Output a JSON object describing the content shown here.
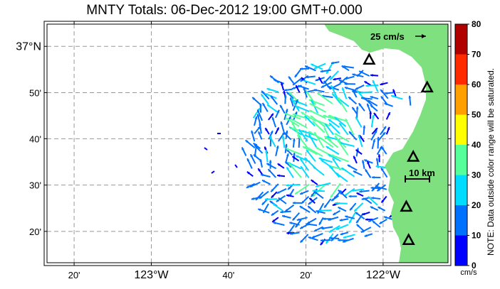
{
  "title": "MNTY Totals: 06-Dec-2012 19:00 GMT+0.000",
  "lon_ticks": [
    {
      "lon": -123.333,
      "label": "20'",
      "major": false
    },
    {
      "lon": -123.0,
      "label": "123°W",
      "major": true
    },
    {
      "lon": -122.667,
      "label": "40'",
      "major": false
    },
    {
      "lon": -122.333,
      "label": "20'",
      "major": false
    },
    {
      "lon": -122.0,
      "label": "122°W",
      "major": true
    }
  ],
  "lat_ticks": [
    {
      "lat": 37.0,
      "label": "37°N",
      "major": true
    },
    {
      "lat": 36.833,
      "label": "50'",
      "major": false
    },
    {
      "lat": 36.667,
      "label": "40'",
      "major": false
    },
    {
      "lat": 36.5,
      "label": "30'",
      "major": false
    },
    {
      "lat": 36.333,
      "label": "20'",
      "major": false
    }
  ],
  "extent": {
    "lon_min": -123.45,
    "lon_max": -121.72,
    "lat_min": 36.22,
    "lat_max": 37.08
  },
  "colorbar": {
    "ticks": [
      "0",
      "10",
      "20",
      "30",
      "40",
      "50",
      "60",
      "70",
      "80"
    ],
    "colors": [
      "#0000ff",
      "#0070ff",
      "#00dcff",
      "#55ff99",
      "#ffff00",
      "#ffa000",
      "#ff2a00",
      "#b00000"
    ],
    "unit": "cm/s",
    "note": "NOTE: Data outside color range will be saturated."
  },
  "scale_vector": {
    "label": "25 cm/s"
  },
  "scale_bar": {
    "label": "10 km"
  },
  "land_color": "#7fe07f",
  "stations": [
    {
      "lon": -122.06,
      "lat": 36.95
    },
    {
      "lon": -121.81,
      "lat": 36.85
    },
    {
      "lon": -121.87,
      "lat": 36.6
    },
    {
      "lon": -121.9,
      "lat": 36.42
    },
    {
      "lon": -121.89,
      "lat": 36.3
    }
  ]
}
